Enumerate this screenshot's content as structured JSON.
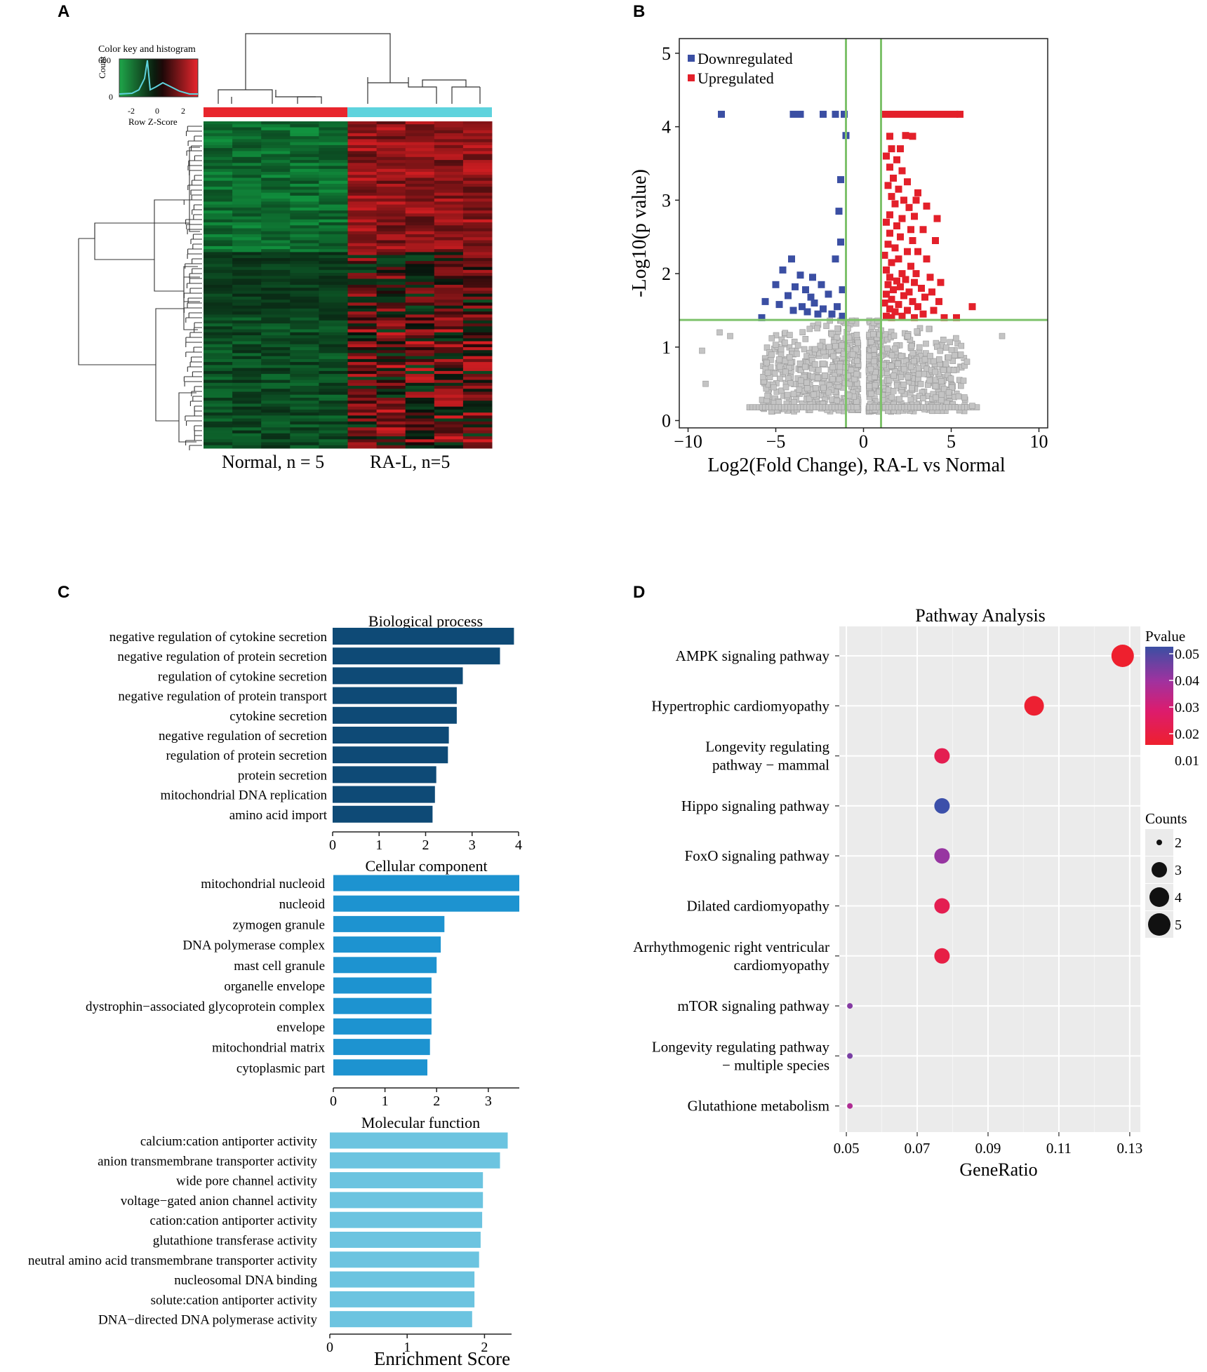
{
  "panels": {
    "a": "A",
    "b": "B",
    "c": "C",
    "d": "D"
  },
  "colors": {
    "heat_red": "#e8262d",
    "heat_green": "#1fa64a",
    "heat_cyan": "#5fd3dd",
    "down": "#3b4fa3",
    "up": "#e3202a",
    "grey": "#c4c4c4",
    "threshold": "#7ec26b",
    "bp": "#0e4a76",
    "cc": "#1d93d0",
    "mf": "#6cc4e0",
    "panel_bg": "#ebebeb"
  },
  "heatmap": {
    "color_key_title": "Color key and histogram",
    "count_label": "Count",
    "count_ticks": [
      "600",
      "0"
    ],
    "z_ticks": [
      "-2",
      "0",
      "2"
    ],
    "z_label": "Row Z-Score",
    "group_normal": "Normal, n = 5",
    "group_ral": "RA-L, n=5"
  },
  "chart_data": [
    {
      "type": "scatter",
      "id": "volcano",
      "xlabel": "Log2(Fold Change), RA-L vs Normal",
      "ylabel": "-Log10(p value)",
      "xlim": [
        -10.5,
        10.5
      ],
      "ylim": [
        -0.1,
        5.2
      ],
      "xticks": [
        -10,
        -5,
        0,
        5,
        10
      ],
      "yticks": [
        0,
        1,
        2,
        3,
        4,
        5
      ],
      "thresholds": {
        "x": [
          -1,
          1
        ],
        "y": 1.37
      },
      "legend": [
        "Downregulated",
        "Upregulated"
      ],
      "down": [
        [
          -8.1,
          4.17
        ],
        [
          -4.0,
          4.17
        ],
        [
          -3.6,
          4.17
        ],
        [
          -2.3,
          4.17
        ],
        [
          -1.6,
          4.17
        ],
        [
          -1.1,
          4.17
        ],
        [
          -1.0,
          3.88
        ],
        [
          -1.3,
          3.28
        ],
        [
          -1.4,
          2.85
        ],
        [
          -1.3,
          2.43
        ],
        [
          -1.6,
          2.2
        ],
        [
          -4.1,
          2.2
        ],
        [
          -4.6,
          2.05
        ],
        [
          -3.6,
          1.98
        ],
        [
          -2.9,
          1.95
        ],
        [
          -2.4,
          1.85
        ],
        [
          -5.0,
          1.85
        ],
        [
          -3.9,
          1.82
        ],
        [
          -3.3,
          1.78
        ],
        [
          -1.2,
          1.78
        ],
        [
          -2.0,
          1.72
        ],
        [
          -4.3,
          1.7
        ],
        [
          -3.0,
          1.68
        ],
        [
          -5.6,
          1.62
        ],
        [
          -2.8,
          1.6
        ],
        [
          -4.8,
          1.58
        ],
        [
          -3.5,
          1.55
        ],
        [
          -1.5,
          1.55
        ],
        [
          -2.3,
          1.52
        ],
        [
          -4.0,
          1.5
        ],
        [
          -3.2,
          1.48
        ],
        [
          -2.6,
          1.45
        ],
        [
          -1.8,
          1.45
        ],
        [
          -1.2,
          1.42
        ],
        [
          -5.8,
          1.4
        ]
      ],
      "up": [
        [
          1.2,
          4.17
        ],
        [
          1.6,
          4.17
        ],
        [
          2.0,
          4.17
        ],
        [
          2.4,
          4.17
        ],
        [
          2.8,
          4.17
        ],
        [
          3.2,
          4.17
        ],
        [
          3.6,
          4.17
        ],
        [
          4.0,
          4.17
        ],
        [
          4.4,
          4.17
        ],
        [
          4.8,
          4.17
        ],
        [
          5.2,
          4.17
        ],
        [
          5.5,
          4.17
        ],
        [
          1.5,
          3.87
        ],
        [
          2.4,
          3.88
        ],
        [
          2.8,
          3.87
        ],
        [
          1.6,
          3.7
        ],
        [
          2.1,
          3.7
        ],
        [
          1.3,
          3.6
        ],
        [
          1.9,
          3.55
        ],
        [
          1.5,
          3.45
        ],
        [
          2.2,
          3.4
        ],
        [
          1.7,
          3.3
        ],
        [
          2.5,
          3.25
        ],
        [
          1.4,
          3.2
        ],
        [
          2.0,
          3.15
        ],
        [
          3.1,
          3.1
        ],
        [
          1.6,
          3.05
        ],
        [
          2.3,
          3.0
        ],
        [
          3.0,
          3.0
        ],
        [
          1.8,
          2.95
        ],
        [
          2.6,
          2.9
        ],
        [
          3.6,
          2.92
        ],
        [
          2.9,
          2.78
        ],
        [
          1.5,
          2.8
        ],
        [
          2.2,
          2.75
        ],
        [
          4.2,
          2.75
        ],
        [
          1.3,
          2.7
        ],
        [
          1.9,
          2.65
        ],
        [
          2.7,
          2.6
        ],
        [
          3.4,
          2.6
        ],
        [
          1.5,
          2.55
        ],
        [
          2.1,
          2.5
        ],
        [
          2.8,
          2.45
        ],
        [
          4.1,
          2.45
        ],
        [
          1.4,
          2.4
        ],
        [
          1.8,
          2.35
        ],
        [
          2.5,
          2.3
        ],
        [
          3.1,
          2.3
        ],
        [
          1.2,
          2.25
        ],
        [
          2.0,
          2.2
        ],
        [
          3.6,
          2.2
        ],
        [
          1.6,
          2.15
        ],
        [
          2.7,
          2.1
        ],
        [
          1.3,
          2.05
        ],
        [
          2.2,
          2.0
        ],
        [
          3.0,
          2.0
        ],
        [
          1.5,
          1.95
        ],
        [
          2.4,
          1.92
        ],
        [
          3.8,
          1.95
        ],
        [
          1.9,
          1.9
        ],
        [
          2.9,
          1.88
        ],
        [
          4.4,
          1.88
        ],
        [
          1.4,
          1.85
        ],
        [
          2.1,
          1.82
        ],
        [
          3.3,
          1.8
        ],
        [
          1.7,
          1.78
        ],
        [
          2.6,
          1.75
        ],
        [
          3.9,
          1.75
        ],
        [
          1.3,
          1.72
        ],
        [
          2.3,
          1.7
        ],
        [
          3.5,
          1.68
        ],
        [
          1.6,
          1.65
        ],
        [
          2.8,
          1.62
        ],
        [
          4.3,
          1.62
        ],
        [
          1.2,
          1.6
        ],
        [
          2.0,
          1.58
        ],
        [
          3.1,
          1.55
        ],
        [
          6.2,
          1.55
        ],
        [
          1.5,
          1.52
        ],
        [
          2.5,
          1.5
        ],
        [
          4.0,
          1.5
        ],
        [
          1.8,
          1.48
        ],
        [
          3.4,
          1.45
        ],
        [
          1.3,
          1.42
        ],
        [
          2.2,
          1.42
        ],
        [
          2.9,
          1.4
        ],
        [
          4.6,
          1.4
        ],
        [
          5.3,
          1.4
        ],
        [
          1.6,
          1.4
        ]
      ]
    },
    {
      "type": "bar",
      "id": "biological-process",
      "title": "Biological process",
      "orientation": "horizontal",
      "xlim": [
        0,
        4
      ],
      "xticks": [
        0,
        1,
        2,
        3,
        4
      ],
      "categories": [
        "negative regulation of cytokine secretion",
        "negative regulation of protein secretion",
        "regulation of cytokine secretion",
        "negative regulation of protein transport",
        "cytokine secretion",
        "negative regulation of secretion",
        "regulation of protein secretion",
        "protein secretion",
        "mitochondrial DNA replication",
        "amino acid import"
      ],
      "values": [
        3.9,
        3.6,
        2.8,
        2.67,
        2.67,
        2.5,
        2.48,
        2.23,
        2.2,
        2.15
      ]
    },
    {
      "type": "bar",
      "id": "cellular-component",
      "title": "Cellular component",
      "orientation": "horizontal",
      "xlim": [
        0,
        3.6
      ],
      "xticks": [
        0,
        1,
        2,
        3
      ],
      "categories": [
        "mitochondrial nucleoid",
        "nucleoid",
        "zymogen granule",
        "DNA polymerase complex",
        "mast cell granule",
        "organelle envelope",
        "dystrophin−associated glycoprotein complex",
        "envelope",
        "mitochondrial matrix",
        "cytoplasmic part"
      ],
      "values": [
        3.6,
        3.6,
        2.15,
        2.08,
        2.0,
        1.9,
        1.9,
        1.9,
        1.87,
        1.82
      ]
    },
    {
      "type": "bar",
      "id": "molecular-function",
      "title": "Molecular function",
      "orientation": "horizontal",
      "xlim": [
        0,
        2.35
      ],
      "xticks": [
        0,
        1,
        2
      ],
      "xlabel": "Enrichment Score",
      "categories": [
        "calcium:cation antiporter activity",
        "anion transmembrane transporter activity",
        "wide pore channel activity",
        "voltage−gated anion channel activity",
        "cation:cation antiporter activity",
        "glutathione transferase activity",
        "neutral amino acid transmembrane transporter activity",
        "nucleosomal DNA binding",
        "solute:cation antiporter activity",
        "DNA−directed DNA polymerase activity"
      ],
      "values": [
        2.3,
        2.2,
        1.98,
        1.98,
        1.97,
        1.95,
        1.93,
        1.87,
        1.87,
        1.84
      ]
    },
    {
      "type": "scatter",
      "id": "pathway-analysis",
      "title": "Pathway Analysis",
      "xlabel": "GeneRatio",
      "xlim": [
        0.048,
        0.133
      ],
      "xticks": [
        0.05,
        0.07,
        0.09,
        0.11,
        0.13
      ],
      "xtick_labels": [
        "0.05",
        "0.07",
        "0.09",
        "0.11",
        "0.13"
      ],
      "color_legend": {
        "title": "Pvalue",
        "ticks": [
          "0.05",
          "0.04",
          "0.03",
          "0.02",
          "0.01"
        ]
      },
      "size_legend": {
        "title": "Counts",
        "ticks": [
          "2",
          "3",
          "4",
          "5"
        ]
      },
      "points": [
        {
          "label": "AMPK signaling pathway",
          "ratio": 0.128,
          "count": 5,
          "pvalue": 0.003
        },
        {
          "label": "Hypertrophic cardiomyopathy",
          "ratio": 0.103,
          "count": 4,
          "pvalue": 0.004
        },
        {
          "label": "Longevity regulating\npathway − mammal",
          "ratio": 0.077,
          "count": 3,
          "pvalue": 0.012
        },
        {
          "label": "Hippo signaling pathway",
          "ratio": 0.077,
          "count": 3,
          "pvalue": 0.05
        },
        {
          "label": "FoxO signaling pathway",
          "ratio": 0.077,
          "count": 3,
          "pvalue": 0.035
        },
        {
          "label": "Dilated cardiomyopathy",
          "ratio": 0.077,
          "count": 3,
          "pvalue": 0.012
        },
        {
          "label": "Arrhythmogenic right ventricular\ncardiomyopathy",
          "ratio": 0.077,
          "count": 3,
          "pvalue": 0.009
        },
        {
          "label": "mTOR signaling pathway",
          "ratio": 0.051,
          "count": 2,
          "pvalue": 0.038
        },
        {
          "label": "Longevity regulating pathway\n− multiple species",
          "ratio": 0.051,
          "count": 2,
          "pvalue": 0.04
        },
        {
          "label": "Glutathione metabolism",
          "ratio": 0.051,
          "count": 2,
          "pvalue": 0.03
        }
      ]
    }
  ]
}
